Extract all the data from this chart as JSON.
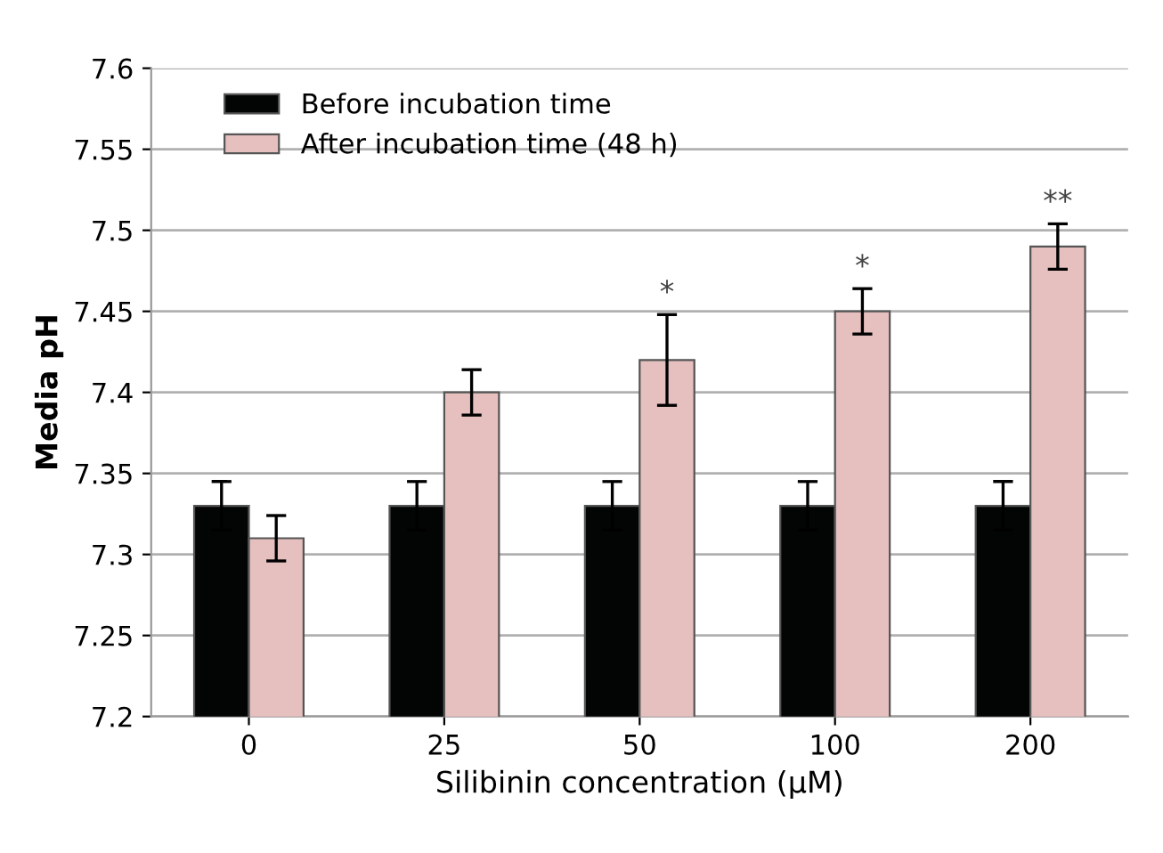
{
  "chart_data": {
    "type": "bar",
    "xlabel": "Silibinin concentration (µM)",
    "ylabel": "Media pH",
    "categories": [
      "0",
      "25",
      "50",
      "100",
      "200"
    ],
    "series": [
      {
        "name": "Before incubation time",
        "color": "#030504",
        "values": [
          7.33,
          7.33,
          7.33,
          7.33,
          7.33
        ],
        "errors": [
          0.015,
          0.015,
          0.015,
          0.015,
          0.015
        ]
      },
      {
        "name": "After incubation time (48 h)",
        "color": "#e6bfbf",
        "values": [
          7.31,
          7.4,
          7.42,
          7.45,
          7.49
        ],
        "errors": [
          0.014,
          0.014,
          0.028,
          0.014,
          0.014
        ]
      }
    ],
    "ylim": [
      7.2,
      7.6
    ],
    "yticks": [
      7.2,
      7.25,
      7.3,
      7.35,
      7.4,
      7.45,
      7.5,
      7.55,
      7.6
    ],
    "grid": "y",
    "legend": "top left",
    "annotations": [
      "*",
      "*",
      "**"
    ]
  }
}
